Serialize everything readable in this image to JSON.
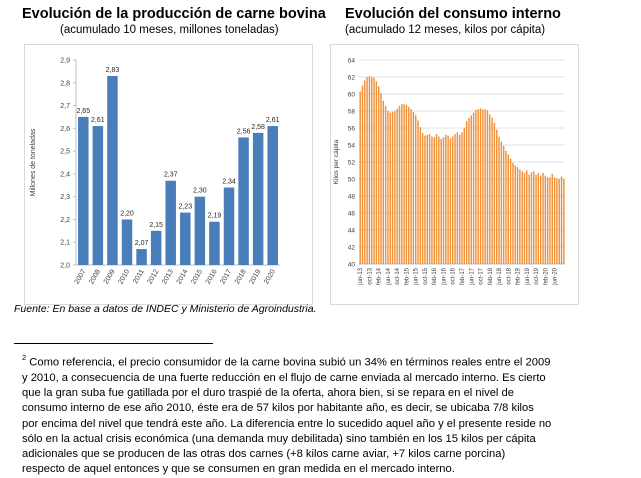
{
  "chart_data": [
    {
      "type": "bar",
      "title": "Evolución de la producción de carne bovina",
      "subtitle": "(acumulado 10 meses, millones toneladas)",
      "ylabel": "Millones de toneladas",
      "categories": [
        "2007",
        "2008",
        "2009",
        "2010",
        "2011",
        "2012",
        "2013",
        "2014",
        "2015",
        "2016",
        "2017",
        "2018",
        "2019",
        "2020"
      ],
      "values": [
        2.65,
        2.61,
        2.83,
        2.2,
        2.07,
        2.15,
        2.37,
        2.23,
        2.3,
        2.19,
        2.34,
        2.56,
        2.58,
        2.61
      ],
      "data_labels": [
        "2,65",
        "2,61",
        "2,83",
        "2,20",
        "2,07",
        "2,15",
        "2,37",
        "2,23",
        "2,30",
        "2,19",
        "2,34",
        "2,56",
        "2,58",
        "2,61"
      ],
      "ylim": [
        2.0,
        2.9
      ],
      "yticks": [
        "2,0",
        "2,1",
        "2,2",
        "2,3",
        "2,4",
        "2,5",
        "2,6",
        "2,7",
        "2,8",
        "2,9"
      ],
      "grid": false,
      "color": "#4a7ebb"
    },
    {
      "type": "bar",
      "title": "Evolución del consumo interno",
      "subtitle": "(acumulado 12 meses, kilos por cápita)",
      "ylabel": "Kilos per cápita",
      "x": [
        "jun-13",
        "jul-13",
        "ago-13",
        "sep-13",
        "oct-13",
        "nov-13",
        "dic-13",
        "ene-14",
        "feb-14",
        "mar-14",
        "abr-14",
        "may-14",
        "jun-14",
        "jul-14",
        "ago-14",
        "sep-14",
        "oct-14",
        "nov-14",
        "dic-14",
        "ene-15",
        "feb-15",
        "mar-15",
        "abr-15",
        "may-15",
        "jun-15",
        "jul-15",
        "ago-15",
        "sep-15",
        "oct-15",
        "nov-15",
        "dic-15",
        "ene-16",
        "feb-16",
        "mar-16",
        "abr-16",
        "may-16",
        "jun-16",
        "jul-16",
        "ago-16",
        "sep-16",
        "oct-16",
        "nov-16",
        "dic-16",
        "ene-17",
        "feb-17",
        "mar-17",
        "abr-17",
        "may-17",
        "jun-17",
        "jul-17",
        "ago-17",
        "sep-17",
        "oct-17",
        "nov-17",
        "dic-17",
        "ene-18",
        "feb-18",
        "mar-18",
        "abr-18",
        "may-18",
        "jun-18",
        "jul-18",
        "ago-18",
        "sep-18",
        "oct-18",
        "nov-18",
        "dic-18",
        "ene-19",
        "feb-19",
        "mar-19",
        "abr-19",
        "may-19",
        "jun-19",
        "jul-19",
        "ago-19",
        "sep-19",
        "oct-19",
        "nov-19",
        "dic-19",
        "ene-20",
        "feb-20",
        "mar-20",
        "abr-20",
        "may-20",
        "jun-20",
        "jul-20",
        "ago-20",
        "sep-20",
        "oct-20"
      ],
      "xtick_labels": [
        "jun-13",
        "oct-13",
        "feb-14",
        "jun-14",
        "oct-14",
        "feb-15",
        "jun-15",
        "oct-15",
        "feb-16",
        "jun-16",
        "oct-16",
        "feb-17",
        "jun-17",
        "oct-17",
        "feb-18",
        "jun-18",
        "oct-18",
        "feb-19",
        "jun-19",
        "oct-19",
        "feb-20",
        "jun-20"
      ],
      "values": [
        60.3,
        61.0,
        61.6,
        62.0,
        62.1,
        62.0,
        61.9,
        61.5,
        60.9,
        60.1,
        59.2,
        58.6,
        58.0,
        57.8,
        57.9,
        58.0,
        58.3,
        58.6,
        58.8,
        58.8,
        58.7,
        58.5,
        58.2,
        57.9,
        57.5,
        56.9,
        56.1,
        55.4,
        55.1,
        55.2,
        55.3,
        55.0,
        54.9,
        55.3,
        55.0,
        54.7,
        54.9,
        55.2,
        55.1,
        54.8,
        55.0,
        55.3,
        55.5,
        55.2,
        55.5,
        56.0,
        56.8,
        57.2,
        57.5,
        57.8,
        58.1,
        58.2,
        58.3,
        58.2,
        58.2,
        58.1,
        57.6,
        57.2,
        56.6,
        55.8,
        55.0,
        54.4,
        53.9,
        53.3,
        52.9,
        52.4,
        51.9,
        51.6,
        51.4,
        51.1,
        50.9,
        50.7,
        51.0,
        50.5,
        50.8,
        50.9,
        50.5,
        50.7,
        50.4,
        50.7,
        50.4,
        50.2,
        50.2,
        50.6,
        50.2,
        50.1,
        50.0,
        50.3,
        50.0
      ],
      "ylim": [
        40,
        64
      ],
      "yticks": [
        "40",
        "42",
        "44",
        "46",
        "48",
        "50",
        "52",
        "54",
        "56",
        "58",
        "60",
        "62",
        "64"
      ],
      "grid": true,
      "color": "#f0913a"
    }
  ],
  "source_note": "Fuente: En base a datos de INDEC y Ministerio de Agroindustria.",
  "footnote": {
    "marker": "2",
    "lines": [
      " Como referencia, el precio consumidor de la carne bovina subió un 34% en términos reales entre el 2009",
      "y 2010, a consecuencia de una fuerte reducción en el flujo de carne enviada al mercado interno. Es cierto",
      "que la gran suba fue gatillada por el duro traspié de la oferta, ahora bien, si se repara en el nivel de",
      "consumo interno de ese año 2010, éste era de 57 kilos por habitante año, es decir, se ubicaba 7/8 kilos",
      "por encima del nivel que tendrá este año. La diferencia entre lo sucedido aquel año y el presente reside no",
      "sólo en la actual crisis económica (una demanda muy debilitada) sino también en los 15 kilos per cápita",
      "adicionales que se producen de las otras dos carnes (+8 kilos carne aviar, +7 kilos carne porcina)",
      "respecto de aquel entonces y que se consumen en gran medida en el mercado interno."
    ]
  }
}
